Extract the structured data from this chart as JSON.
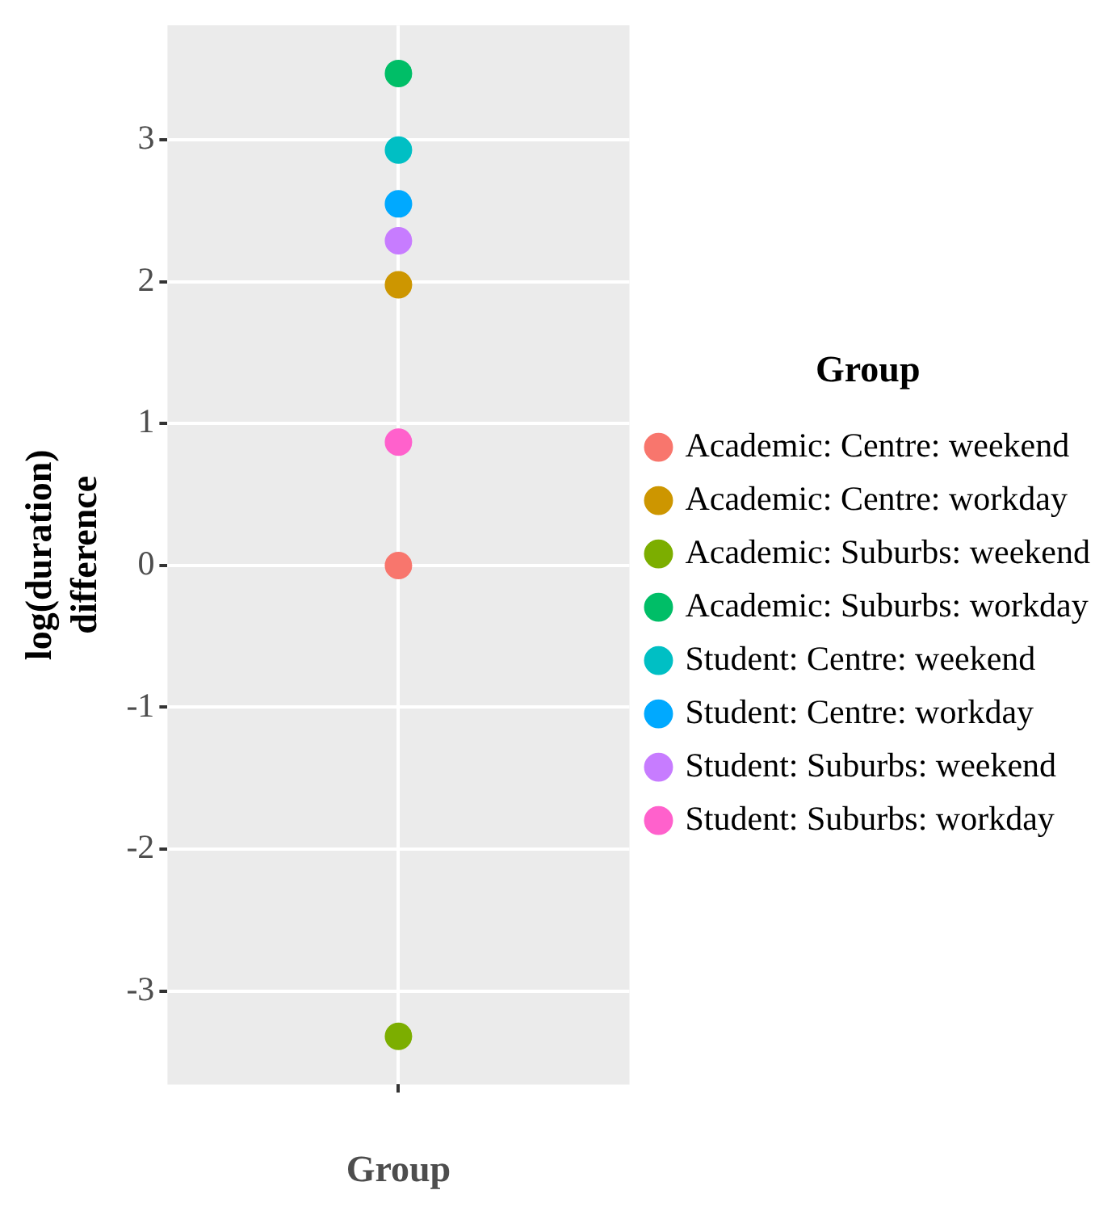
{
  "chart_data": {
    "type": "scatter",
    "xlabel": "Group",
    "ylabel": "log(duration)\ndifference",
    "legend_title": "Group",
    "categories": [
      null
    ],
    "ylim": [
      -3.66,
      3.81
    ],
    "yticks": [
      -3,
      -2,
      -1,
      0,
      1,
      2,
      3
    ],
    "grid": true,
    "legend": "right",
    "marker": "circle",
    "series": [
      {
        "name": "Academic: Centre: weekend",
        "color": "#f8766d",
        "values": [
          0
        ]
      },
      {
        "name": "Academic: Centre: workday",
        "color": "#cd9600",
        "values": [
          1.98
        ]
      },
      {
        "name": "Academic: Suburbs: weekend",
        "color": "#7cae00",
        "values": [
          -3.32
        ]
      },
      {
        "name": "Academic: Suburbs: workday",
        "color": "#00be67",
        "values": [
          3.47
        ]
      },
      {
        "name": "Student: Centre: weekend",
        "color": "#00bfc4",
        "values": [
          2.93
        ]
      },
      {
        "name": "Student: Centre: workday",
        "color": "#00a9ff",
        "values": [
          2.55
        ]
      },
      {
        "name": "Student: Suburbs: weekend",
        "color": "#c77cff",
        "values": [
          2.29
        ]
      },
      {
        "name": "Student: Suburbs: workday",
        "color": "#ff61cc",
        "values": [
          0.87
        ]
      }
    ]
  }
}
